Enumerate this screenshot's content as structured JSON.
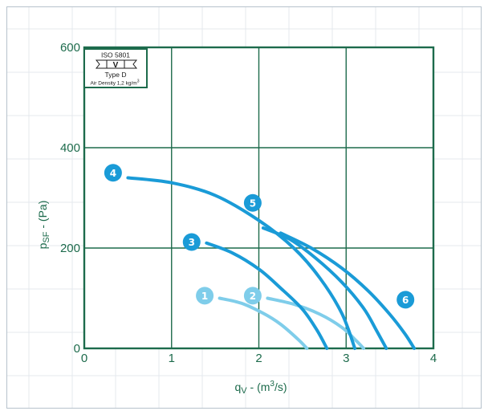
{
  "chart_data": {
    "type": "line",
    "title": "",
    "xlabel": "qV - (m3/s)",
    "ylabel": "pSF - (Pa)",
    "xlim": [
      0,
      4
    ],
    "ylim": [
      0,
      600
    ],
    "x_ticks": [
      "0",
      "1",
      "2",
      "3",
      "4"
    ],
    "y_ticks": [
      "0",
      "200",
      "400",
      "600"
    ],
    "grid": true,
    "legend": {
      "placement": "top-left",
      "standard": "ISO 5801",
      "installation": "V",
      "type": "Type D",
      "density_prefix": "Air Density 1,2 kg/m",
      "density_exp": "3"
    },
    "series": [
      {
        "name": "1",
        "badge": [
          1.38,
          105
        ],
        "x": [
          1.55,
          1.8,
          2.05,
          2.25,
          2.45,
          2.55
        ],
        "y": [
          100,
          90,
          70,
          48,
          18,
          0
        ]
      },
      {
        "name": "2",
        "badge": [
          1.93,
          105
        ],
        "x": [
          2.1,
          2.4,
          2.7,
          2.95,
          3.1,
          3.2
        ],
        "y": [
          100,
          88,
          68,
          42,
          18,
          0
        ]
      },
      {
        "name": "3",
        "badge": [
          1.23,
          212
        ],
        "x": [
          1.4,
          1.7,
          2.0,
          2.25,
          2.5,
          2.67,
          2.78
        ],
        "y": [
          210,
          190,
          158,
          120,
          78,
          35,
          0
        ]
      },
      {
        "name": "4",
        "badge": [
          0.33,
          350
        ],
        "x": [
          0.5,
          1.0,
          1.5,
          2.0,
          2.4,
          2.7,
          2.95,
          3.1
        ],
        "y": [
          340,
          330,
          305,
          255,
          200,
          140,
          70,
          0
        ]
      },
      {
        "name": "5",
        "badge": [
          1.93,
          290
        ],
        "x": [
          2.05,
          2.35,
          2.65,
          2.95,
          3.2,
          3.35,
          3.46
        ],
        "y": [
          240,
          218,
          180,
          132,
          80,
          35,
          0
        ]
      },
      {
        "name": "6",
        "badge": [
          3.68,
          97
        ],
        "x": [
          2.25,
          2.6,
          2.95,
          3.25,
          3.5,
          3.67,
          3.78
        ],
        "y": [
          230,
          200,
          160,
          115,
          68,
          30,
          0
        ]
      }
    ]
  }
}
